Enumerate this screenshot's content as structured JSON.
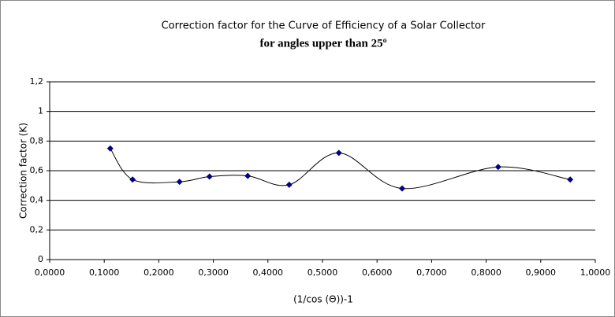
{
  "chart_data": {
    "type": "scatter_smooth",
    "title": "Correction factor for the Curve of Efficiency of a Solar Collector",
    "subtitle": "for angles upper than 25º",
    "x_label": "(1/cos (Θ))-1",
    "y_label": "Correction factor (K)",
    "color": "#000080",
    "line_color": "#000000",
    "grid": true,
    "x": [
      0.111,
      0.152,
      0.238,
      0.293,
      0.363,
      0.439,
      0.53,
      0.646,
      0.822,
      0.954
    ],
    "values": [
      0.75,
      0.54,
      0.525,
      0.56,
      0.565,
      0.505,
      0.72,
      0.48,
      0.625,
      0.54
    ],
    "xlim": [
      0,
      1
    ],
    "ylim": [
      0,
      1.2
    ],
    "xticks": [
      {
        "value": 0,
        "label": "0,0000"
      },
      {
        "value": 0.1,
        "label": "0,1000"
      },
      {
        "value": 0.2,
        "label": "0,2000"
      },
      {
        "value": 0.3,
        "label": "0,3000"
      },
      {
        "value": 0.4,
        "label": "0,4000"
      },
      {
        "value": 0.5,
        "label": "0,5000"
      },
      {
        "value": 0.6,
        "label": "0,6000"
      },
      {
        "value": 0.7,
        "label": "0,7000"
      },
      {
        "value": 0.8,
        "label": "0,8000"
      },
      {
        "value": 0.9,
        "label": "0,9000"
      },
      {
        "value": 1,
        "label": "1,0000"
      }
    ],
    "yticks": [
      0,
      {
        "value": 0.2,
        "label": "0,2"
      },
      {
        "value": 0.4,
        "label": "0,4"
      },
      {
        "value": 0.6,
        "label": "0,6"
      },
      {
        "value": 0.8,
        "label": "0,8"
      },
      1,
      {
        "value": 1.2,
        "label": "1,2"
      }
    ]
  }
}
